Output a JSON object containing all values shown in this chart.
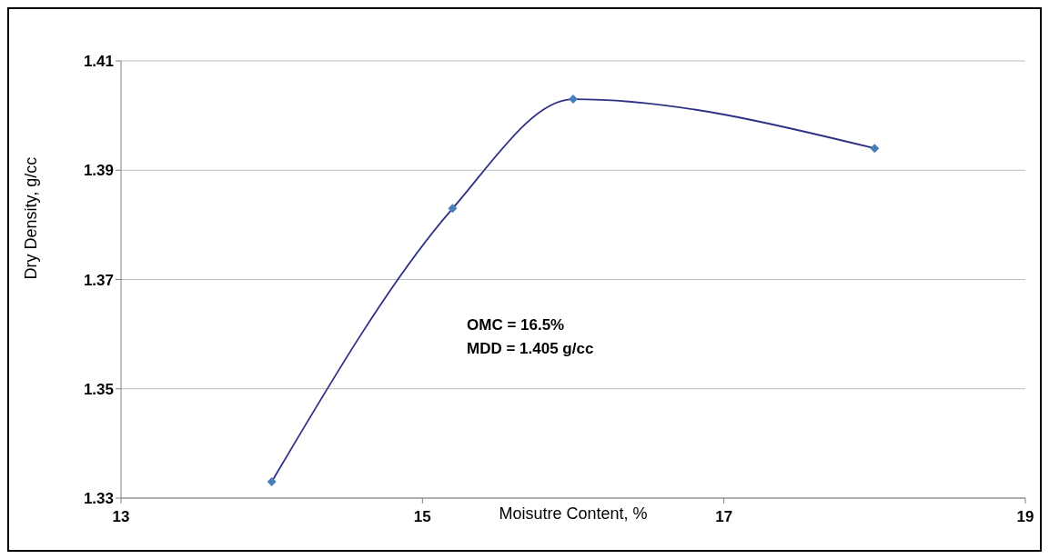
{
  "chart_data": {
    "type": "line",
    "xlabel": "Moisutre Content, %",
    "ylabel": "Dry Density, g/cc",
    "x": [
      14.0,
      15.2,
      16.0,
      18.0
    ],
    "series": [
      {
        "color": "#2f3185",
        "values": [
          1.333,
          1.383,
          1.403,
          1.394
        ]
      }
    ],
    "xlim": [
      13,
      19
    ],
    "xticks": [
      13,
      15,
      17,
      19
    ],
    "ylim": [
      1.33,
      1.41
    ],
    "yticks": [
      1.33,
      1.35,
      1.37,
      1.39,
      1.41
    ],
    "grid": "y",
    "marker": "diamond",
    "line_style": "solid",
    "annotations": [
      "OMC  = 16.5%",
      "MDD = 1.405 g/cc"
    ]
  }
}
